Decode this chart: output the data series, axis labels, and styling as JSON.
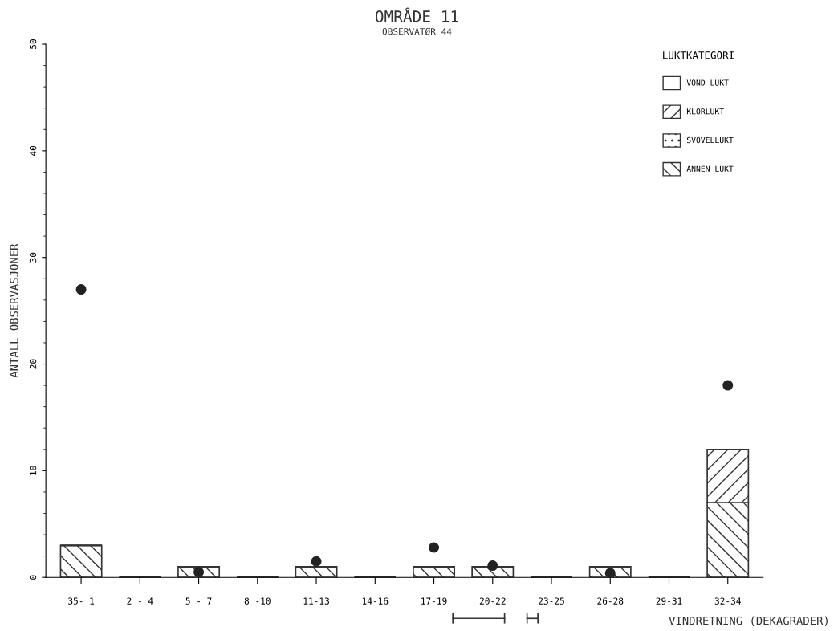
{
  "chart_data": {
    "type": "bar",
    "title": "OMRÅDE 11",
    "subtitle": "OBSERVATØR 44",
    "xlabel": "VINDRETNING (DEKAGRADER)",
    "ylabel": "ANTALL OBSERVASJONER",
    "legend_title": "LUKTKATEGORI",
    "categories": [
      "35- 1",
      "2 - 4",
      "5 - 7",
      "8 -10",
      "11-13",
      "14-16",
      "17-19",
      "20-22",
      "23-25",
      "26-28",
      "29-31",
      "32-34"
    ],
    "stacked": true,
    "series": [
      {
        "name": "VOND LUKT",
        "color": "#333333",
        "values": [
          0,
          0,
          0,
          0,
          0,
          0,
          0,
          0,
          0,
          0,
          0,
          0
        ]
      },
      {
        "name": "ANNEN LUKT",
        "color": "#333333",
        "values": [
          3,
          0,
          1,
          0,
          1,
          0,
          1,
          1,
          0,
          1,
          0,
          7
        ]
      },
      {
        "name": "KLORLUKT",
        "color": "#333333",
        "values": [
          0,
          0,
          0,
          0,
          0,
          0,
          0,
          0,
          0,
          0,
          0,
          5
        ]
      },
      {
        "name": "SVOVELLUKT",
        "color": "#333333",
        "values": [
          0,
          0,
          0,
          0,
          0,
          0,
          0,
          0,
          0,
          0,
          0,
          0
        ]
      },
      {
        "type": "scatter",
        "color": "#222222",
        "values": [
          27,
          null,
          0.5,
          null,
          1.5,
          null,
          2.8,
          1.1,
          null,
          0.4,
          null,
          18
        ]
      }
    ],
    "ylim": [
      0,
      50
    ],
    "yticks": [
      0,
      10,
      20,
      30,
      40,
      50
    ],
    "grid": false,
    "legend": "top right",
    "marker": "circle"
  }
}
